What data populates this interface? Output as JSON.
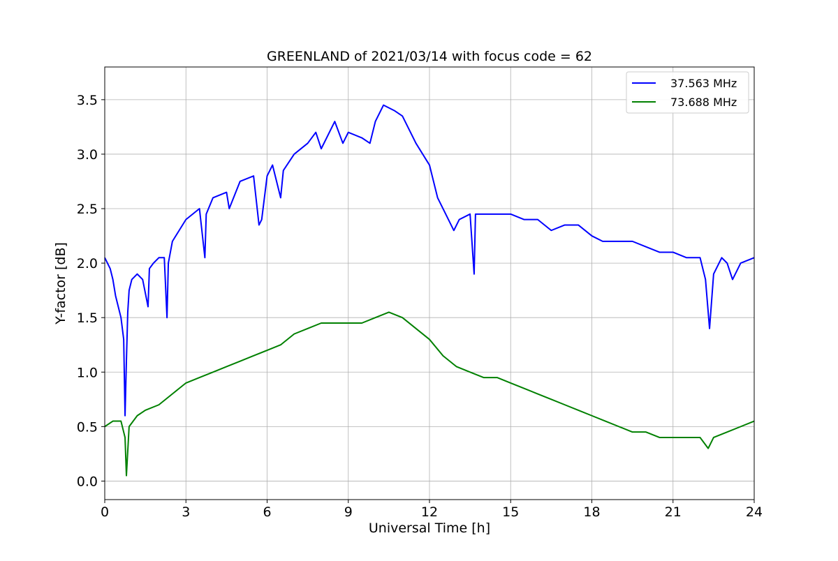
{
  "chart_data": {
    "type": "line",
    "title": "GREENLAND of 2021/03/14 with focus code = 62",
    "xlabel": "Universal Time [h]",
    "ylabel": "Y-factor [dB]",
    "xlim": [
      0,
      24
    ],
    "ylim": [
      -0.17,
      3.8
    ],
    "xticks": [
      0,
      3,
      6,
      9,
      12,
      15,
      18,
      21,
      24
    ],
    "xtick_labels": [
      "0",
      "3",
      "6",
      "9",
      "12",
      "15",
      "18",
      "21",
      "24"
    ],
    "yticks": [
      0.0,
      0.5,
      1.0,
      1.5,
      2.0,
      2.5,
      3.0,
      3.5
    ],
    "ytick_labels": [
      "0.0",
      "0.5",
      "1.0",
      "1.5",
      "2.0",
      "2.5",
      "3.0",
      "3.5"
    ],
    "grid": true,
    "legend_position": "top-right",
    "series": [
      {
        "name": "37.563 MHz",
        "color": "#0000ff",
        "x": [
          0.0,
          0.1,
          0.2,
          0.3,
          0.4,
          0.5,
          0.6,
          0.7,
          0.75,
          0.8,
          0.85,
          0.9,
          1.0,
          1.2,
          1.4,
          1.6,
          1.65,
          1.8,
          2.0,
          2.2,
          2.3,
          2.35,
          2.5,
          3.0,
          3.5,
          3.7,
          3.75,
          4.0,
          4.5,
          4.6,
          5.0,
          5.5,
          5.7,
          5.8,
          6.0,
          6.2,
          6.5,
          6.6,
          7.0,
          7.5,
          7.8,
          8.0,
          8.2,
          8.5,
          8.8,
          9.0,
          9.5,
          9.8,
          10.0,
          10.3,
          10.7,
          11.0,
          11.5,
          12.0,
          12.3,
          12.6,
          12.9,
          13.1,
          13.5,
          13.65,
          13.7,
          14.0,
          14.5,
          15.0,
          15.5,
          16.0,
          16.5,
          17.0,
          17.5,
          18.0,
          18.4,
          19.0,
          19.5,
          20.0,
          20.5,
          21.0,
          21.5,
          22.0,
          22.2,
          22.35,
          22.5,
          22.8,
          23.0,
          23.2,
          23.5,
          24.0
        ],
        "values": [
          2.05,
          2.0,
          1.95,
          1.85,
          1.7,
          1.6,
          1.5,
          1.3,
          0.6,
          1.1,
          1.55,
          1.75,
          1.85,
          1.9,
          1.85,
          1.6,
          1.95,
          2.0,
          2.05,
          2.05,
          1.5,
          2.0,
          2.2,
          2.4,
          2.5,
          2.05,
          2.45,
          2.6,
          2.65,
          2.5,
          2.75,
          2.8,
          2.35,
          2.4,
          2.8,
          2.9,
          2.6,
          2.85,
          3.0,
          3.1,
          3.2,
          3.05,
          3.15,
          3.3,
          3.1,
          3.2,
          3.15,
          3.1,
          3.3,
          3.45,
          3.4,
          3.35,
          3.1,
          2.9,
          2.6,
          2.45,
          2.3,
          2.4,
          2.45,
          1.9,
          2.45,
          2.45,
          2.45,
          2.45,
          2.4,
          2.4,
          2.3,
          2.35,
          2.35,
          2.25,
          2.2,
          2.2,
          2.2,
          2.15,
          2.1,
          2.1,
          2.05,
          2.05,
          1.85,
          1.4,
          1.9,
          2.05,
          2.0,
          1.85,
          2.0,
          2.05
        ]
      },
      {
        "name": "73.688 MHz",
        "color": "#008000",
        "x": [
          0.0,
          0.3,
          0.6,
          0.75,
          0.8,
          0.9,
          1.2,
          1.5,
          2.0,
          2.5,
          3.0,
          3.5,
          4.0,
          4.5,
          5.0,
          5.5,
          6.0,
          6.5,
          7.0,
          7.5,
          8.0,
          8.5,
          9.0,
          9.5,
          10.0,
          10.5,
          11.0,
          11.5,
          12.0,
          12.5,
          13.0,
          13.5,
          14.0,
          14.5,
          15.0,
          15.5,
          16.0,
          16.5,
          17.0,
          17.5,
          18.0,
          18.5,
          19.0,
          19.5,
          20.0,
          20.5,
          21.0,
          21.5,
          22.0,
          22.3,
          22.5,
          23.0,
          23.5,
          24.0
        ],
        "values": [
          0.5,
          0.55,
          0.55,
          0.4,
          0.05,
          0.5,
          0.6,
          0.65,
          0.7,
          0.8,
          0.9,
          0.95,
          1.0,
          1.05,
          1.1,
          1.15,
          1.2,
          1.25,
          1.35,
          1.4,
          1.45,
          1.45,
          1.45,
          1.45,
          1.5,
          1.55,
          1.5,
          1.4,
          1.3,
          1.15,
          1.05,
          1.0,
          0.95,
          0.95,
          0.9,
          0.85,
          0.8,
          0.75,
          0.7,
          0.65,
          0.6,
          0.55,
          0.5,
          0.45,
          0.45,
          0.4,
          0.4,
          0.4,
          0.4,
          0.3,
          0.4,
          0.45,
          0.5,
          0.55
        ]
      }
    ]
  }
}
